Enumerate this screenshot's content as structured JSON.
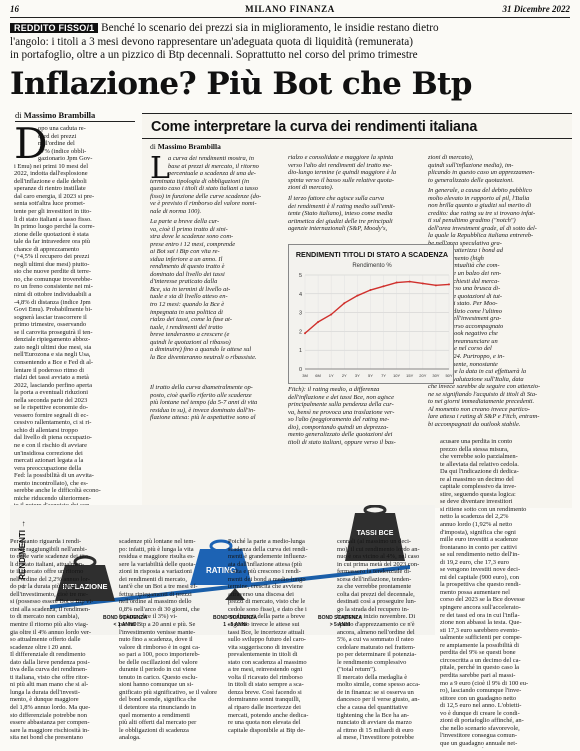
{
  "header": {
    "page_number": "16",
    "publication": "MILANO FINANZA",
    "date": "31 Dicembre 2022"
  },
  "kicker": {
    "badge": "REDDITO FISSO/1",
    "lines": [
      "Benché lo scenario dei prezzi sia in miglioramento, le insidie restano dietro",
      "l'angolo: i titoli a 3 mesi devono rappresentare un'adeguata quota di liquidità (remunerata)",
      "in portafoglio, oltre a un pizzico di Btp decennali. Soprattutto nel corso del primo trimestre"
    ]
  },
  "headline": "Inflazione? Più Bot che Btp",
  "byline": {
    "prefix": "di",
    "author": "Massimo Brambilla"
  },
  "left_column": {
    "dropcap": "D",
    "lines": [
      "opo una caduta re-",
      "cord dei prezzi",
      "nell'ordine del",
      "17% (indice obbli-",
      "gazionario Jpm Gov-",
      "i Emu) nei primi 10 mesi del",
      "2022, indotta dall'esplosione",
      "dell'inflazione e dalle deboli",
      "speranze di rientro instillate",
      "dal caro energia, il 2023 si pre-",
      "senta sott'altra luce promet-",
      "tente per gli investitori in tito-",
      "li di stato italiani a tasso fisso.",
      "In primo luogo perché la corre-",
      "zione delle quotazioni è stata",
      "tale da far intravedere ora più",
      "chance di apprezzamento",
      "(+4,5% il recupero dei prezzi",
      "negli ultimi due mesi) piutto-",
      "sto che nuove perdite di terre-",
      "no, che comunque troverebbe-",
      "ro un freno consistente nei mi-",
      "nimi di ottobre individuabili a",
      "-4,8% di distanza (indice Jpm",
      "Govi Emu). Probabilmente bi-",
      "sognerà lasciar trascorrere il",
      "primo trimestre, osservando",
      "se il carovita proseguirà il ten-",
      "denziale ripiegamento abboz-",
      "zato negli ultimi due mesi, sia",
      "nell'Eurozona e sia negli Usa,",
      "consentendo a Bce e Fed di al-",
      "lentare il poderoso ritmo di",
      "rialzi dei tassi avviato a metà",
      "2022, lasciando perfino aperta",
      "la porta a eventuali riduzioni",
      "nella seconda parte del 2023",
      "se le rispettive economie do-",
      "vessero fornire segnali di ec-",
      "cessivo rallentamento, ci si ri-",
      "schio di allentarsi troppo",
      "dal livello di piena occupazio-",
      "ne e con il rischio di avviare",
      "un'insidiosa correzione dei",
      "mercati azionari legata a la",
      "vera preoccupazione della",
      "Fed: la possibilità di un avvita-",
      "mento incontrollato), che es-",
      "serebbe anche le difficoltà econo-",
      "miche riducendo ulteriormen-",
      "te il potere d'acquisto dei con-",
      "sumatori (soprattutto ameri-",
      "cani), già eroso dall'inflazione."
    ]
  },
  "box": {
    "title": "Come interpretare la curva dei rendimenti italiana",
    "byline_prefix": "di",
    "byline_author": "Massimo Brambilla",
    "col1_dropcap": "L",
    "col1_lines": [
      "a curva dei rendimenti mostra, in",
      "base ai prezzi di mercato, il ritorno",
      "percentuale a scadenza di una de-",
      "terminata tipologia di obbligazioni (in",
      "questo caso i titoli di stato italiani a tasso",
      "fisso) in funzione delle curve scadenze (do-",
      "ve è previsto il rimborso del valore nomi-",
      "nale di norma 100)."
    ],
    "col1_lines_b": [
      "La parte a breve della cur-",
      "va, cioè il primo tratto di sini-",
      "stra dove le scadenze sono com-",
      "prese entro i 12 mesi, comprende",
      "ai Bot sai i Btp con vita re-",
      "sidua inferiore a un anno. Il",
      "rendimento di questo tratto è",
      "dominato dal livello dei tassi",
      "d'interesse praticato dalla",
      "Bce, sia in termini di livello at-",
      "tuale e sia di livello atteso en-",
      "tro 12 mesi: quando la Bce è",
      "impegnata in una politica di",
      "rialzo dei tassi, come la fase at-",
      "tuale, i rendimenti del tratto",
      "breve tenderanno a crescere (e",
      "quindi le quotazioni al ribasso)",
      "a diminuire) fino a quando le attese sul",
      "la Bce diventeranno neutrali o ribassiste."
    ],
    "col1_lines_c": [
      "Il tratto della curva diametralmente op-",
      "posto, cioè quello riferito alle scadenze",
      "più lontane nel tempo (da 5-7 anni di vita",
      "residua in su), è invece dominato dall'in-",
      "flazione attesa: più le aspettative sono al"
    ],
    "col2_lines": [
      "rialzo e consolidate e maggiore la spinta",
      "verso l'alto dei rendimenti del tratto me-",
      "dio-lungo termine (e quindi maggiore è la",
      "spinta verso il basso sulle relative quota-",
      "zioni di mercato)."
    ],
    "col2_lines_b": [
      "Il terzo fattore che agisce sulla curva",
      "dei rendimenti è il rating medio sull'emit-",
      "tente (Stato italiano), inteso come media",
      "aritmetica dei giudizi delle tre principali",
      "agenzie internazionali (S&P, Moody's,"
    ],
    "col3_lines": [
      "zioni di mercato),",
      "quindi sull'inflazione media), im-",
      "plicando in questo caso un apprezzamen-",
      "to generalizzato delle quotazioni."
    ],
    "col3_lines_b": [
      "In generale, a causa del debito pubblico",
      "molto elevato in rapporto al pil, l'Italia",
      "non brilla quanto a giudizi sul merito di",
      "credito: due rating su tre si trovano infat-",
      "ti sul penultimo gradino (\"notch\")",
      "dell'area investment grade, al di sotto del-",
      "la quale la Repubblica italiana entrereb-",
      "be nell'area speculativa gra-",
      "de che caratterizza i bond ad",
      "alto rendimento (high",
      "yield), eventualità che com-",
      "porterebbe un balzo dei ren-",
      "dimenti richiesti dal merca-",
      "to attraverso una brusca di-",
      "scesa delle quotazioni di tut-",
      "ti i titoli di stato. Per Moo-",
      "dy's il giudizio come l'ultimo",
      "gradino dell'investment gra-",
      "de, attraverso accompagnato",
      "da un outlook negativo che",
      "potrebbe preannunciare un",
      "downgrade nel corso del",
      "2023 e 2024. Purtroppo, e in-",
      "guagabilmente, nonostante",
      "Moody's ne la data in cui effettuerà la",
      "prossima valutazione sull'Italia, data",
      "che invece sarebbe da seguire con attenzio-",
      "ne se signifiando l'acquisto di titoli di Sta-",
      "to nei giorni immediatamente precedenti.",
      "Al momento non creano invece partico-",
      "lare attesa i rating di S&P e Fitch, entram-",
      "bi accompagnati da outlook stabile."
    ],
    "chart_caption_lines": [
      "Fitch): il rating medio, a differenza",
      "dell'inflazione e dei tassi Bce, non agisce",
      "principalmente sulla pendenza della cur-",
      "va, bensì ne provoca una traslazione ver-",
      "so l'alto (peggioramento del rating me-",
      "dio), comportando quindi un deprezza-",
      "mento generalizzato delle quotazioni dei",
      "titoli di stato italiani, oppure verso il bas-"
    ]
  },
  "chart_data": {
    "type": "line",
    "title": "RENDIMENTI TITOLI DI STATO A SCADENZA",
    "ylabel": "Rendimento %",
    "x": [
      "3M",
      "6M",
      "1Y",
      "2Y",
      "3Y",
      "5Y",
      "7Y",
      "10Y",
      "15Y",
      "20Y",
      "30Y",
      "50Y"
    ],
    "y": [
      1.9,
      2.5,
      2.9,
      3.5,
      3.9,
      4.2,
      4.4,
      4.6,
      4.65,
      4.55,
      4.45,
      4.5
    ],
    "ylim": [
      0,
      5
    ],
    "yticks": [
      "0",
      "1",
      "2",
      "3",
      "4",
      "5"
    ],
    "xtick_labels": [
      "",
      "",
      "",
      "",
      "",
      "",
      "",
      "",
      "",
      "",
      "",
      "10Y"
    ],
    "grid": true,
    "color": "#d0302c"
  },
  "illustration": {
    "axis_label": "← RENDIMENTI →",
    "weights": [
      "INFLAZIONE",
      "TASSI BCE",
      "RATING"
    ],
    "scadenze": [
      "BOND SCADENZA\n< 1 ANNO",
      "BOND SCADENZA\n1 - 5 ANNI",
      "BOND SCADENZA\n> 5 ANNI"
    ]
  },
  "right_column_lines": [
    "acusare una perdita in conto",
    "prezzo della stessa misura,",
    "che verrebbe solo parzialmen-",
    "te alleviata dal relativo cedola.",
    "Da qui l'indicazione di dedica-",
    "re al massimo un decimo del",
    "capitale complessivo da inve-",
    "stire, seguendo questa logica:",
    "se deve diventare investitori",
    "si ritiene sotto con un rendimento",
    "netto la scadenza del 2,2%",
    "annuo lordo (1,92% al netto",
    "d'imposta), significa che ogni",
    "mille euro investiti a scadenze",
    "frontarano in conto per cattivi",
    "se sul rendimento netto dell'in-",
    "di 19,2 euro, che 17,3 euro",
    "se vengono investiti nove deci-",
    "mi del capitale (900 euro), con",
    "la prospettiva che questo rendi-",
    "mento possa aumentare nel",
    "corso del 2023 se la Bce dovesse",
    "spingere ancora sull'accelerato-",
    "re dei tassi ed ora in cui l'infla-",
    "zione non abbassi la testa. Que-",
    "sti 17,3 euro sarebbero evento-",
    "ualmente sufficienti per compe-",
    "re ampiamente la possibilità di",
    "perdita del 9% se questi bone",
    "circoscritta a un decimo del ca-",
    "pitale, perché in questo caso la",
    "perdita sarebbe pari al massi-",
    "mo a 9 euro (cioè il 9% di 100 eu-",
    "ro), lasciando comunque l'inve-",
    "stitore con un guadagno netto",
    "di 12,5 euro nel anno. L'obietti-",
    "vo è dunque di creare le condi-",
    "zioni di portafoglio affinché, an-",
    "che nello scenario sfavorevole,",
    "l'investitore consegua comun-",
    "que un guadagno annuale net-",
    "to superiore rendimento",
    "in corso (ripetu-",
    "zione riservata)"
  ],
  "bottom_col1_lines": [
    "Per quanto riguarda i rendi-",
    "menti raggiungibili nell'ambi-",
    "to delle varie scadenze dei tito-",
    "li di stato italiani, attualmen-",
    "te il mercato offre un ritorno",
    "nell'ordine del 2,2% annuo lor-",
    "do per la durata più breve",
    "dell'investimento, cioè tre me-",
    "si (possesso essere Bot o Btp vi-",
    "cini alla scadenza, il rendimen-",
    "to di mercato non cambia),",
    "mentre il ritorno più alto viag-",
    "gia oltre il 4% annuo lordo ver-",
    "so attualmente offerto dalle",
    "scadenze oltre i 20 anni.",
    "Il differenziale di rendimento",
    "dato dalla lieve pendenza posi-",
    "tiva della curva dei rendimen-",
    "ti italiana, visto che offre ritor-",
    "ni più alti man mano che si al-",
    "lunga la durata dell'investi-",
    "mento, è dunque maggiore",
    "del 1,8% annuo lordo. Ma que-",
    "sto differenziale potrebbe non",
    "essere abbastanza per compen-",
    "sare la maggiore rischiosità in-",
    "sita nei bond che presentano"
  ],
  "bottom_col2_lines": [
    "scadenze più lontane nel tem-",
    "po: infatti, più è lunga la vita",
    "residua e maggiore risulta es-",
    "sere la variabilità delle quota-",
    "zioni in risposta a variazioni",
    "dei rendimenti di mercato,",
    "tant'è che un Bot a tre mesi ef-",
    "fettua ripiegamenti di prezzi",
    "nell'ordine al massimo dello",
    "0,8% nell'arco di 30 giorni, che",
    "(spiana oltre il 3%) vi-",
    "per un Btp a 20 anni e più. Se",
    "l'investimento venisse mante-",
    "nuto fino a scadenza, dove il",
    "valore di rimborso è in ogni ca-",
    "so pari a 100, poco importereb-",
    "be delle oscillazioni del valore",
    "durante il periodo in cui viene",
    "tenuto in carico. Questo esclu-",
    "sioni hanno comunque un si-",
    "gnificato più significativo, se il valore",
    "del bond scende, significa che",
    "il detentore sta rinunciando in",
    "quel momento a rendimenti",
    "più alti offerti dal mercato per",
    "le obbligazioni di scadenza",
    "analoga."
  ],
  "bottom_col3_lines": [
    "Poiché la parte a medio-lunga",
    "scadenza della curva dei rendi-",
    "menti è grandemente influenz-",
    "ata dall'inflazione attesa (più",
    "è alta e più crescono i rendi-",
    "menti dei bond a medio-lungo",
    "termine, crescita che avviene",
    "attraverso una discesa dei",
    "prezzi di mercato, visto che le",
    "cedole sono fisse), e dato che i",
    "rendimenti della parte a breve",
    "seguono invece le attese sui",
    "tassi Bce, le incertezze attuali",
    "sullo sviluppo futuro del caro-",
    "vita suggeriscono di investire",
    "prevalentemente in titoli di",
    "stato con scadenza al massimo",
    "a tre mesi, reinvestendo ogni",
    "volta il ricavato del rimborso",
    "in titoli di stato sempre a sca-",
    "denza breve. Così facendo si",
    "dormiranno sonni tranquilli,",
    "al riparo dalle incertezze dei",
    "mercati, potendo anche dedica-",
    "re una quota non elevata del",
    "capitale disponibile ai Btp de-"
  ],
  "bottom_col4_lines": [
    "cennali (al massimo un deci-",
    "mo), il cui rendimento lordo an-",
    "nuo è ora vicino al 4%, nel caso",
    "in cui prima metà del 2023 con-",
    "fermassero la tendenziale di-",
    "scesa dell'inflazione, tenden-",
    "za che verrebbe prontamente",
    "colta dai prezzi del decennale,",
    "destinati così a proseguire lun-",
    "go la strada del recupero in-",
    "trapresa a inizio novembre. Di",
    "spazio d'apprezzamento ce n'è",
    "ancora, almeno nell'ordine del",
    "5%, a cui va sommato il rateo",
    "cedolare maturato nel frattem-",
    "po per determinare il potenzia-",
    "le rendimento complessivo",
    "(\"total return\").",
    "Il mercato della medaglia è",
    "molto simile, come spesso acca-",
    "de in finanza: se si osserva un",
    "dancesco per il verse giusto, an-",
    "che a causa del quantitative",
    "tightening che la Bce ha an-",
    "nunciato di avviare da marzo",
    "al ritmo di 15 miliardi di euro",
    "al mese, l'investitore potrebbe"
  ]
}
